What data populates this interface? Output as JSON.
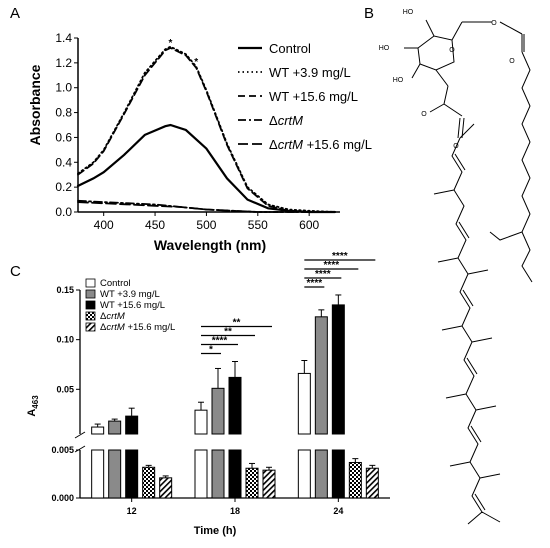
{
  "panels": {
    "a": "A",
    "b": "B",
    "c": "C"
  },
  "chart_data": [
    {
      "id": "A",
      "type": "line",
      "xlabel": "Wavelength (nm)",
      "ylabel": "Absorbance",
      "xlim": [
        375,
        630
      ],
      "ylim": [
        0,
        1.4
      ],
      "xticks": [
        400,
        450,
        500,
        550,
        600
      ],
      "yticks": [
        0.0,
        0.2,
        0.4,
        0.6,
        0.8,
        1.0,
        1.2,
        1.4
      ],
      "tick_labels_x": [
        "400",
        "450",
        "500",
        "550",
        "600"
      ],
      "tick_labels_y": [
        "0.0",
        "0.2",
        "0.4",
        "0.6",
        "0.8",
        "1.0",
        "1.2",
        "1.4"
      ],
      "legend_position": "top-right",
      "markers": [
        {
          "label": "*",
          "x": 465,
          "y": 1.35
        },
        {
          "label": "*",
          "x": 490,
          "y": 1.2
        }
      ],
      "series": [
        {
          "name": "Control",
          "style": "solid",
          "x": [
            375,
            390,
            400,
            420,
            440,
            460,
            465,
            480,
            500,
            520,
            540,
            560,
            580,
            600,
            625
          ],
          "y": [
            0.21,
            0.27,
            0.32,
            0.46,
            0.62,
            0.69,
            0.7,
            0.66,
            0.51,
            0.27,
            0.1,
            0.03,
            0.01,
            0.0,
            0.0
          ]
        },
        {
          "name": "WT +3.9 mg/L",
          "style": "dotted",
          "x": [
            375,
            390,
            400,
            420,
            440,
            460,
            465,
            480,
            490,
            500,
            520,
            540,
            560,
            580,
            600,
            625
          ],
          "y": [
            0.31,
            0.4,
            0.5,
            0.8,
            1.12,
            1.31,
            1.33,
            1.27,
            1.17,
            0.98,
            0.55,
            0.2,
            0.06,
            0.02,
            0.01,
            0.0
          ]
        },
        {
          "name": "WT +15.6 mg/L",
          "style": "dashed",
          "x": [
            375,
            390,
            400,
            420,
            440,
            460,
            465,
            480,
            490,
            500,
            520,
            540,
            560,
            580,
            600,
            625
          ],
          "y": [
            0.3,
            0.39,
            0.49,
            0.79,
            1.1,
            1.3,
            1.32,
            1.26,
            1.16,
            0.97,
            0.54,
            0.19,
            0.05,
            0.01,
            0.0,
            0.0
          ]
        },
        {
          "name": "ΔcrtM",
          "name_prefix": "Δ",
          "name_italic": "crtM",
          "name_suffix": "",
          "style": "dashdot",
          "x": [
            375,
            400,
            425,
            450,
            475,
            500,
            525,
            550,
            575,
            600,
            625
          ],
          "y": [
            0.09,
            0.08,
            0.07,
            0.06,
            0.04,
            0.02,
            0.01,
            0.0,
            0.0,
            0.0,
            0.0
          ]
        },
        {
          "name": "ΔcrtM +15.6 mg/L",
          "name_prefix": "Δ",
          "name_italic": "crtM",
          "name_suffix": " +15.6 mg/L",
          "style": "longdash",
          "x": [
            375,
            400,
            425,
            450,
            475,
            500,
            525,
            550,
            575,
            600,
            625
          ],
          "y": [
            0.08,
            0.07,
            0.06,
            0.05,
            0.04,
            0.02,
            0.01,
            0.0,
            0.0,
            0.0,
            0.0
          ]
        }
      ]
    },
    {
      "id": "C",
      "type": "bar",
      "xlabel": "Time (h)",
      "ylabel_main": "A",
      "ylabel_sub": "463",
      "categories": [
        "12",
        "18",
        "24"
      ],
      "ylim_upper": [
        0.005,
        0.15
      ],
      "ylim_lower": [
        0.0,
        0.005
      ],
      "yticks_upper": [
        0.05,
        0.1,
        0.15
      ],
      "yticks_lower": [
        0.0,
        0.005
      ],
      "tick_labels_upper": [
        "0.05",
        "0.10",
        "0.15"
      ],
      "tick_labels_lower": [
        "0.000",
        "0.005"
      ],
      "legend_position": "top-left",
      "series": [
        {
          "name": "Control",
          "fill": "white",
          "values": [
            0.012,
            0.029,
            0.066
          ],
          "errors": [
            0.003,
            0.008,
            0.013
          ]
        },
        {
          "name": "WT +3.9 mg/L",
          "fill": "gray",
          "values": [
            0.018,
            0.051,
            0.123
          ],
          "errors": [
            0.002,
            0.02,
            0.007
          ]
        },
        {
          "name": "WT +15.6 mg/L",
          "fill": "black",
          "values": [
            0.023,
            0.062,
            0.135
          ],
          "errors": [
            0.008,
            0.016,
            0.01
          ]
        },
        {
          "name": "ΔcrtM",
          "name_prefix": "Δ",
          "name_italic": "crtM",
          "name_suffix": "",
          "fill": "checker",
          "values": [
            0.0032,
            0.0031,
            0.0037
          ],
          "errors": [
            0.0002,
            0.0005,
            0.0004
          ]
        },
        {
          "name": "ΔcrtM +15.6 mg/L",
          "name_prefix": "Δ",
          "name_italic": "crtM",
          "name_suffix": " +15.6 mg/L",
          "fill": "hatch",
          "values": [
            0.0021,
            0.0029,
            0.0031
          ],
          "errors": [
            0.0002,
            0.0003,
            0.0003
          ]
        }
      ],
      "significance": [
        {
          "category": "18",
          "from": 0,
          "to": 1,
          "label": "*"
        },
        {
          "category": "18",
          "from": 0,
          "to": 2,
          "label": "****"
        },
        {
          "category": "18",
          "from": 0,
          "to": 3,
          "label": "**"
        },
        {
          "category": "18",
          "from": 0,
          "to": 4,
          "label": "**"
        },
        {
          "category": "24",
          "from": 0,
          "to": 1,
          "label": "****"
        },
        {
          "category": "24",
          "from": 0,
          "to": 2,
          "label": "****"
        },
        {
          "category": "24",
          "from": 0,
          "to": 3,
          "label": "****"
        },
        {
          "category": "24",
          "from": 0,
          "to": 4,
          "label": "****"
        }
      ]
    }
  ],
  "structure": {
    "atoms": [
      "HO",
      "HO",
      "HO",
      "O",
      "O",
      "O",
      "O",
      "O"
    ]
  }
}
